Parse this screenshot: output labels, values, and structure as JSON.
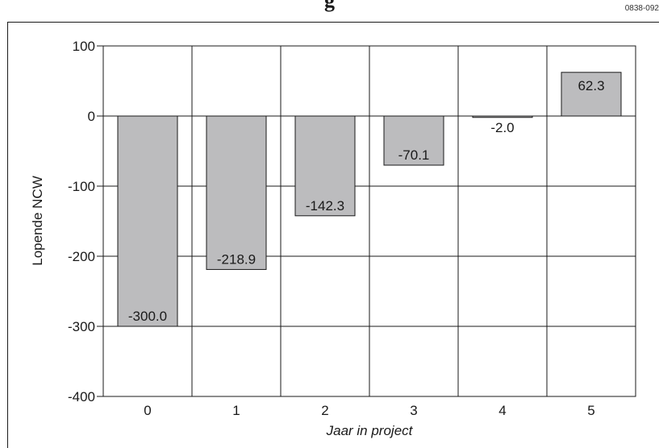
{
  "header": {
    "partial_title": "g",
    "figure_code": "0838-092"
  },
  "chart_data": {
    "type": "bar",
    "categories": [
      "0",
      "1",
      "2",
      "3",
      "4",
      "5"
    ],
    "values": [
      -300.0,
      -218.9,
      -142.3,
      -70.1,
      -2.0,
      62.3
    ],
    "value_labels": [
      "-300.0",
      "-218.9",
      "-142.3",
      "-70.1",
      "-2.0",
      "62.3"
    ],
    "yticks": [
      "100",
      "0",
      "-100",
      "-200",
      "-300",
      "-400"
    ],
    "ytick_values": [
      100,
      0,
      -100,
      -200,
      -300,
      -400
    ],
    "xlabel": "Jaar in project",
    "ylabel": "Lopende NCW",
    "ylim": [
      -400,
      100
    ],
    "grid": true,
    "bar_color": "#bcbcbe"
  }
}
